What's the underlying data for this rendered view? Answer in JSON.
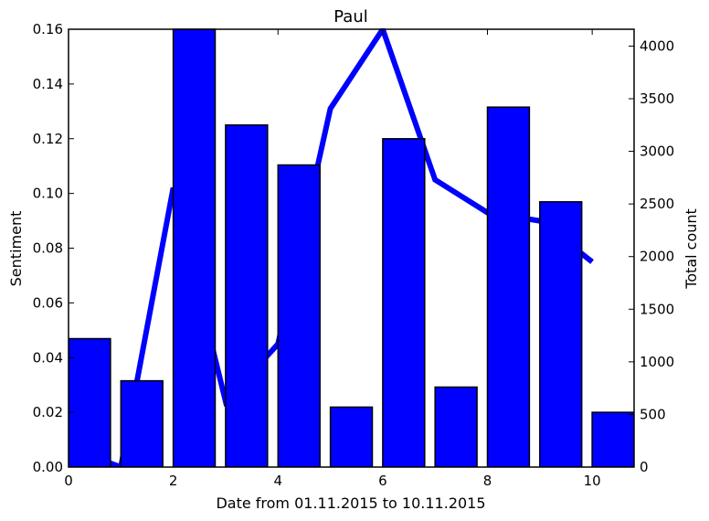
{
  "chart_data": {
    "type": "bar+line",
    "title": "Paul",
    "xlabel": "Date from 01.11.2015 to 10.11.2015",
    "ylabel_left": "Sentiment",
    "ylabel_right": "Total count",
    "xlim": [
      0,
      10.8
    ],
    "ylim_left": [
      0,
      0.16
    ],
    "ylim_right": [
      0,
      4160
    ],
    "x_ticks": [
      0,
      2,
      4,
      6,
      8,
      10
    ],
    "x_tick_labels": [
      "0",
      "2",
      "4",
      "6",
      "8",
      "10"
    ],
    "y_left_ticks": [
      0.0,
      0.02,
      0.04,
      0.06,
      0.08,
      0.1,
      0.12,
      0.14,
      0.16
    ],
    "y_left_tick_labels": [
      "0.00",
      "0.02",
      "0.04",
      "0.06",
      "0.08",
      "0.10",
      "0.12",
      "0.14",
      "0.16"
    ],
    "y_right_ticks": [
      0,
      500,
      1000,
      1500,
      2000,
      2500,
      3000,
      3500,
      4000
    ],
    "y_right_tick_labels": [
      "0",
      "500",
      "1000",
      "1500",
      "2000",
      "2500",
      "3000",
      "3500",
      "4000"
    ],
    "grid": false,
    "line_series": {
      "axis": "left",
      "color": "#0000ff",
      "x": [
        0,
        1,
        2,
        3,
        4,
        5,
        6,
        7,
        8,
        9,
        10
      ],
      "y": [
        0.007,
        0.0,
        0.102,
        0.024,
        0.045,
        0.131,
        0.16,
        0.105,
        0.093,
        0.09,
        0.075
      ]
    },
    "bar_series": {
      "axis": "right",
      "color": "#0000ff",
      "width": 0.8,
      "x": [
        0,
        1,
        2,
        3,
        4,
        5,
        6,
        7,
        8,
        9,
        10
      ],
      "values": [
        1220,
        820,
        4160,
        3250,
        2870,
        570,
        3120,
        760,
        3420,
        2520,
        520
      ]
    }
  }
}
